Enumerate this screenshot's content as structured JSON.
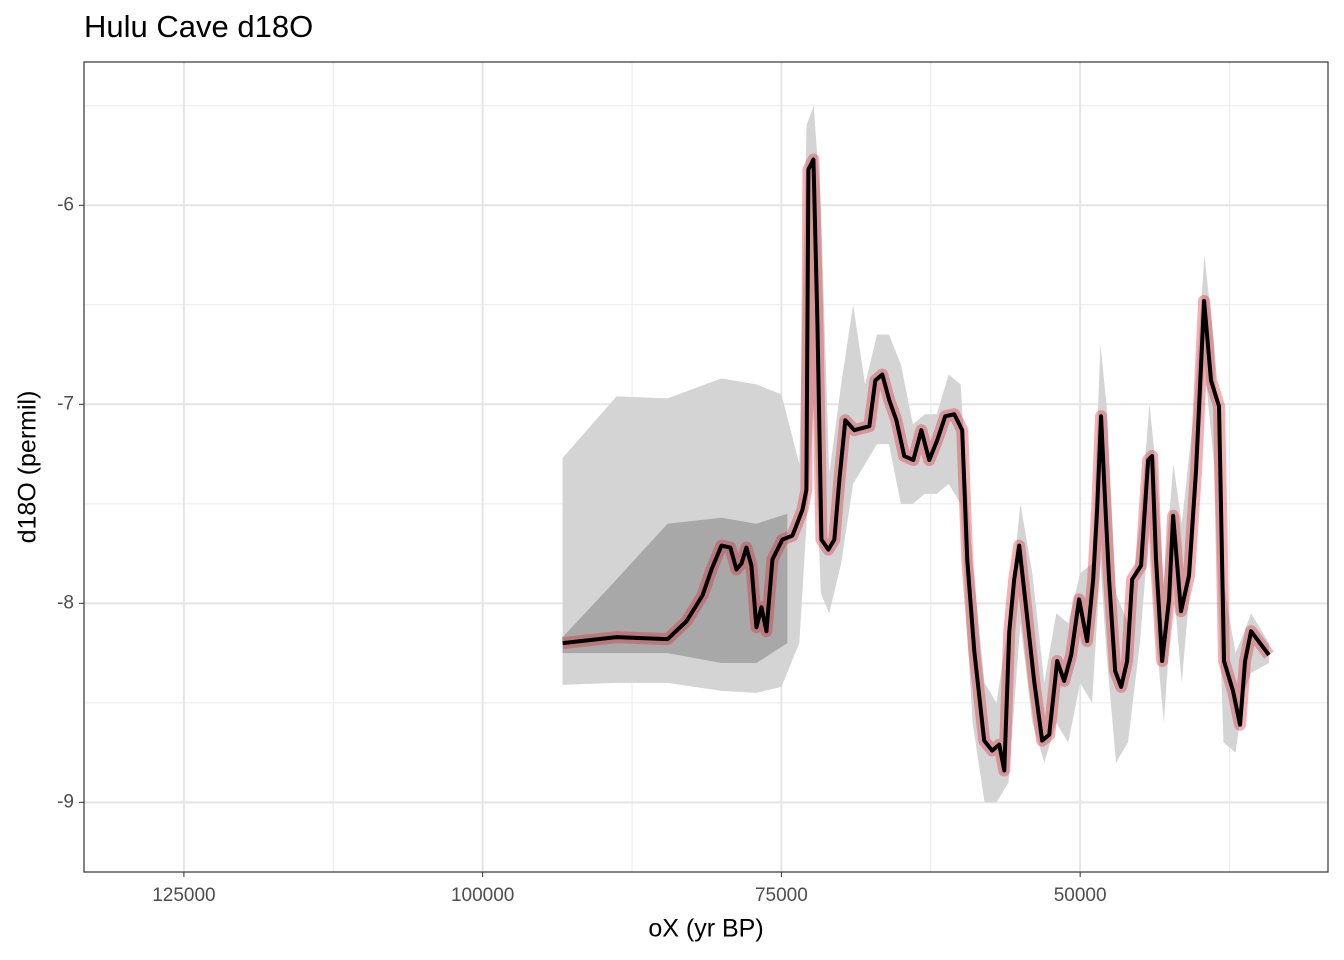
{
  "chart_data": {
    "type": "line",
    "title": "Hulu Cave d18O",
    "x_label": "oX (yr BP)",
    "y_label": "d18O (permil)",
    "xlim": [
      133360,
      29260
    ],
    "ylim": [
      -9.35,
      -5.28
    ],
    "xticks": [
      125000,
      100000,
      75000,
      50000
    ],
    "xminor": [
      112500,
      87500,
      62500,
      37500
    ],
    "yticks": [
      -9,
      -8,
      -7,
      -6
    ],
    "yminor": [
      -8.5,
      -7.5,
      -6.5,
      -5.5
    ],
    "grid": true,
    "series": [
      {
        "type": "band",
        "color": "#d4d4d4",
        "x": [
          93310,
          88800,
          84530,
          80020,
          77090,
          75000,
          73500,
          72900,
          72300,
          71700,
          71000,
          70000,
          69000,
          68000,
          67000,
          66000,
          65000,
          64000,
          63000,
          62000,
          61000,
          60000,
          59500,
          59000,
          58000,
          57000,
          56000,
          55000,
          54000,
          53000,
          52000,
          51000,
          50000,
          49000,
          48300,
          47800,
          47000,
          46000,
          45000,
          44200,
          43600,
          43000,
          42200,
          41500,
          40500,
          39600,
          38800,
          38000,
          37000,
          36300,
          35700,
          34200
        ],
        "upper": [
          -7.27,
          -6.96,
          -6.97,
          -6.87,
          -6.9,
          -6.95,
          -7.3,
          -5.6,
          -5.5,
          -6.0,
          -7.35,
          -6.9,
          -6.5,
          -6.9,
          -6.65,
          -6.65,
          -6.8,
          -7.1,
          -7.05,
          -7.05,
          -6.85,
          -6.9,
          -7.4,
          -7.8,
          -8.4,
          -8.5,
          -8.1,
          -7.5,
          -7.85,
          -8.4,
          -8.05,
          -8.1,
          -7.85,
          -7.8,
          -6.7,
          -7.0,
          -7.95,
          -8.1,
          -7.6,
          -7.0,
          -7.35,
          -7.9,
          -7.3,
          -7.6,
          -7.05,
          -6.25,
          -6.7,
          -7.9,
          -8.25,
          -8.15,
          -8.05,
          -8.2
        ],
        "lower": [
          -8.41,
          -8.4,
          -8.4,
          -8.44,
          -8.45,
          -8.42,
          -8.2,
          -7.6,
          -7.0,
          -7.95,
          -8.05,
          -7.8,
          -7.4,
          -7.3,
          -7.2,
          -7.2,
          -7.5,
          -7.5,
          -7.45,
          -7.45,
          -7.4,
          -7.5,
          -8.1,
          -8.6,
          -9.0,
          -9.0,
          -8.9,
          -8.1,
          -8.6,
          -8.8,
          -8.6,
          -8.7,
          -8.4,
          -8.5,
          -7.8,
          -8.25,
          -8.8,
          -8.7,
          -8.2,
          -7.6,
          -8.2,
          -8.6,
          -7.9,
          -8.4,
          -7.7,
          -6.8,
          -7.3,
          -8.7,
          -8.75,
          -8.45,
          -8.35,
          -8.3
        ]
      },
      {
        "type": "band",
        "color": "#a8a8a8",
        "x": [
          93310,
          88800,
          84530,
          80020,
          77090,
          74500
        ],
        "upper": [
          -8.17,
          -7.88,
          -7.6,
          -7.57,
          -7.6,
          -7.55
        ],
        "lower": [
          -8.25,
          -8.25,
          -8.25,
          -8.3,
          -8.3,
          -8.2
        ]
      },
      {
        "type": "line",
        "color": "#000000",
        "halo": "#e0202a",
        "x": [
          93310,
          88800,
          84530,
          82940,
          81600,
          80850,
          80020,
          79270,
          78760,
          78340,
          77930,
          77510,
          77090,
          76670,
          76250,
          75750,
          74920,
          74080,
          73240,
          72910,
          72740,
          72320,
          71990,
          71650,
          71070,
          70570,
          70150,
          69650,
          68900,
          67640,
          67140,
          66560,
          65970,
          65380,
          64720,
          63960,
          63290,
          62630,
          61960,
          61290,
          60530,
          59870,
          59450,
          58860,
          58030,
          57360,
          56770,
          56350,
          55930,
          55520,
          55100,
          54600,
          53850,
          53180,
          52590,
          51920,
          51340,
          50750,
          50090,
          49420,
          48910,
          48580,
          48250,
          47910,
          47580,
          47070,
          46570,
          46070,
          45650,
          44900,
          44310,
          43980,
          43650,
          43140,
          42560,
          42220,
          41560,
          40890,
          40300,
          39630,
          39050,
          38380,
          37960,
          37210,
          36620,
          36200,
          35700,
          34200
        ],
        "values": [
          -8.2,
          -8.17,
          -8.18,
          -8.09,
          -7.96,
          -7.83,
          -7.71,
          -7.72,
          -7.83,
          -7.8,
          -7.72,
          -7.81,
          -8.12,
          -8.02,
          -8.14,
          -7.78,
          -7.68,
          -7.66,
          -7.53,
          -7.43,
          -5.82,
          -5.77,
          -6.58,
          -7.68,
          -7.73,
          -7.68,
          -7.38,
          -7.08,
          -7.13,
          -7.11,
          -6.88,
          -6.85,
          -6.98,
          -7.08,
          -7.26,
          -7.28,
          -7.13,
          -7.28,
          -7.18,
          -7.06,
          -7.05,
          -7.13,
          -7.78,
          -8.24,
          -8.69,
          -8.74,
          -8.71,
          -8.84,
          -8.14,
          -7.88,
          -7.71,
          -7.98,
          -8.39,
          -8.69,
          -8.66,
          -8.29,
          -8.39,
          -8.26,
          -7.98,
          -8.19,
          -7.88,
          -7.53,
          -7.06,
          -7.49,
          -7.88,
          -8.34,
          -8.42,
          -8.29,
          -7.88,
          -7.81,
          -7.28,
          -7.26,
          -7.78,
          -8.29,
          -7.98,
          -7.56,
          -8.04,
          -7.86,
          -7.33,
          -6.48,
          -6.88,
          -7.01,
          -8.29,
          -8.44,
          -8.61,
          -8.29,
          -8.14,
          -8.26
        ]
      }
    ]
  }
}
